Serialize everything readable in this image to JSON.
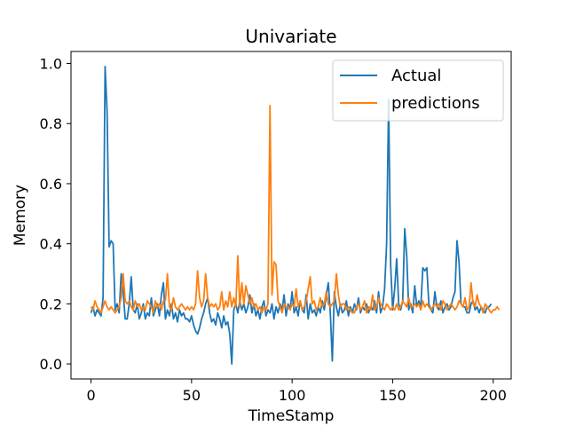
{
  "chart_data": {
    "type": "line",
    "title": "Univariate",
    "xlabel": "TimeStamp",
    "ylabel": "Memory",
    "xlim": [
      -9.95,
      208.95
    ],
    "ylim": [
      -0.05,
      1.04
    ],
    "xticks": [
      0,
      50,
      100,
      150,
      200
    ],
    "xtick_labels": [
      "0",
      "50",
      "100",
      "150",
      "200"
    ],
    "yticks": [
      0.0,
      0.2,
      0.4,
      0.6,
      0.8,
      1.0
    ],
    "ytick_labels": [
      "0.0",
      "0.2",
      "0.4",
      "0.6",
      "0.8",
      "1.0"
    ],
    "grid": false,
    "legend_position": "top-right",
    "series": [
      {
        "name": "Actual",
        "color": "#1f77b4",
        "values": [
          0.17,
          0.19,
          0.16,
          0.18,
          0.17,
          0.16,
          0.22,
          0.99,
          0.84,
          0.39,
          0.41,
          0.4,
          0.18,
          0.2,
          0.17,
          0.3,
          0.24,
          0.15,
          0.15,
          0.2,
          0.29,
          0.18,
          0.17,
          0.2,
          0.15,
          0.17,
          0.2,
          0.15,
          0.17,
          0.16,
          0.22,
          0.16,
          0.18,
          0.2,
          0.16,
          0.23,
          0.27,
          0.15,
          0.18,
          0.16,
          0.2,
          0.15,
          0.17,
          0.14,
          0.18,
          0.16,
          0.17,
          0.15,
          0.15,
          0.14,
          0.16,
          0.13,
          0.11,
          0.1,
          0.12,
          0.15,
          0.17,
          0.2,
          0.22,
          0.17,
          0.14,
          0.15,
          0.13,
          0.17,
          0.15,
          0.12,
          0.16,
          0.13,
          0.14,
          0.1,
          0.0,
          0.18,
          0.2,
          0.17,
          0.21,
          0.18,
          0.2,
          0.17,
          0.19,
          0.23,
          0.17,
          0.2,
          0.16,
          0.18,
          0.15,
          0.19,
          0.21,
          0.16,
          0.18,
          0.17,
          0.2,
          0.15,
          0.19,
          0.17,
          0.2,
          0.18,
          0.23,
          0.16,
          0.2,
          0.18,
          0.24,
          0.17,
          0.19,
          0.16,
          0.21,
          0.18,
          0.17,
          0.23,
          0.15,
          0.2,
          0.17,
          0.18,
          0.16,
          0.19,
          0.17,
          0.21,
          0.18,
          0.23,
          0.27,
          0.17,
          0.01,
          0.24,
          0.19,
          0.16,
          0.2,
          0.17,
          0.18,
          0.21,
          0.16,
          0.19,
          0.17,
          0.2,
          0.18,
          0.22,
          0.17,
          0.19,
          0.18,
          0.2,
          0.17,
          0.19,
          0.18,
          0.21,
          0.17,
          0.24,
          0.17,
          0.19,
          0.25,
          0.4,
          0.88,
          0.33,
          0.18,
          0.25,
          0.35,
          0.2,
          0.18,
          0.21,
          0.45,
          0.36,
          0.18,
          0.2,
          0.17,
          0.26,
          0.19,
          0.21,
          0.19,
          0.32,
          0.31,
          0.32,
          0.2,
          0.18,
          0.17,
          0.24,
          0.19,
          0.18,
          0.21,
          0.17,
          0.19,
          0.2,
          0.18,
          0.19,
          0.22,
          0.24,
          0.41,
          0.34,
          0.2,
          0.19,
          0.19,
          0.17,
          0.17,
          0.2,
          0.21,
          0.18,
          0.19,
          0.17,
          0.19,
          0.18,
          0.17,
          0.19,
          0.19,
          0.2
        ]
      },
      {
        "name": "predictions",
        "color": "#ff7f0e",
        "values": [
          0.19,
          0.18,
          0.21,
          0.19,
          0.18,
          0.17,
          0.19,
          0.21,
          0.19,
          0.18,
          0.19,
          0.18,
          0.17,
          0.18,
          0.19,
          0.22,
          0.3,
          0.21,
          0.2,
          0.21,
          0.19,
          0.18,
          0.21,
          0.19,
          0.2,
          0.18,
          0.19,
          0.18,
          0.21,
          0.2,
          0.19,
          0.17,
          0.21,
          0.19,
          0.2,
          0.18,
          0.21,
          0.21,
          0.3,
          0.19,
          0.18,
          0.22,
          0.19,
          0.18,
          0.19,
          0.2,
          0.19,
          0.18,
          0.19,
          0.18,
          0.19,
          0.18,
          0.2,
          0.31,
          0.22,
          0.19,
          0.21,
          0.3,
          0.22,
          0.19,
          0.2,
          0.19,
          0.2,
          0.18,
          0.19,
          0.24,
          0.18,
          0.21,
          0.19,
          0.24,
          0.19,
          0.22,
          0.19,
          0.36,
          0.19,
          0.27,
          0.2,
          0.26,
          0.23,
          0.2,
          0.22,
          0.19,
          0.2,
          0.18,
          0.19,
          0.17,
          0.19,
          0.18,
          0.2,
          0.86,
          0.23,
          0.34,
          0.33,
          0.21,
          0.19,
          0.17,
          0.2,
          0.19,
          0.19,
          0.18,
          0.2,
          0.19,
          0.25,
          0.19,
          0.21,
          0.18,
          0.19,
          0.21,
          0.25,
          0.29,
          0.2,
          0.21,
          0.18,
          0.19,
          0.22,
          0.19,
          0.2,
          0.24,
          0.2,
          0.19,
          0.2,
          0.21,
          0.3,
          0.23,
          0.19,
          0.2,
          0.2,
          0.18,
          0.19,
          0.18,
          0.17,
          0.17,
          0.19,
          0.2,
          0.18,
          0.19,
          0.21,
          0.17,
          0.19,
          0.18,
          0.23,
          0.18,
          0.19,
          0.22,
          0.2,
          0.19,
          0.18,
          0.2,
          0.19,
          0.18,
          0.19,
          0.18,
          0.2,
          0.18,
          0.19,
          0.21,
          0.2,
          0.19,
          0.22,
          0.19,
          0.19,
          0.2,
          0.19,
          0.2,
          0.18,
          0.21,
          0.19,
          0.2,
          0.19,
          0.18,
          0.19,
          0.2,
          0.19,
          0.2,
          0.18,
          0.21,
          0.2,
          0.18,
          0.19,
          0.2,
          0.19,
          0.18,
          0.19,
          0.21,
          0.2,
          0.19,
          0.22,
          0.18,
          0.19,
          0.27,
          0.2,
          0.19,
          0.23,
          0.2,
          0.19,
          0.17,
          0.2,
          0.19,
          0.18,
          0.17,
          0.18,
          0.18,
          0.19,
          0.18
        ]
      }
    ]
  }
}
